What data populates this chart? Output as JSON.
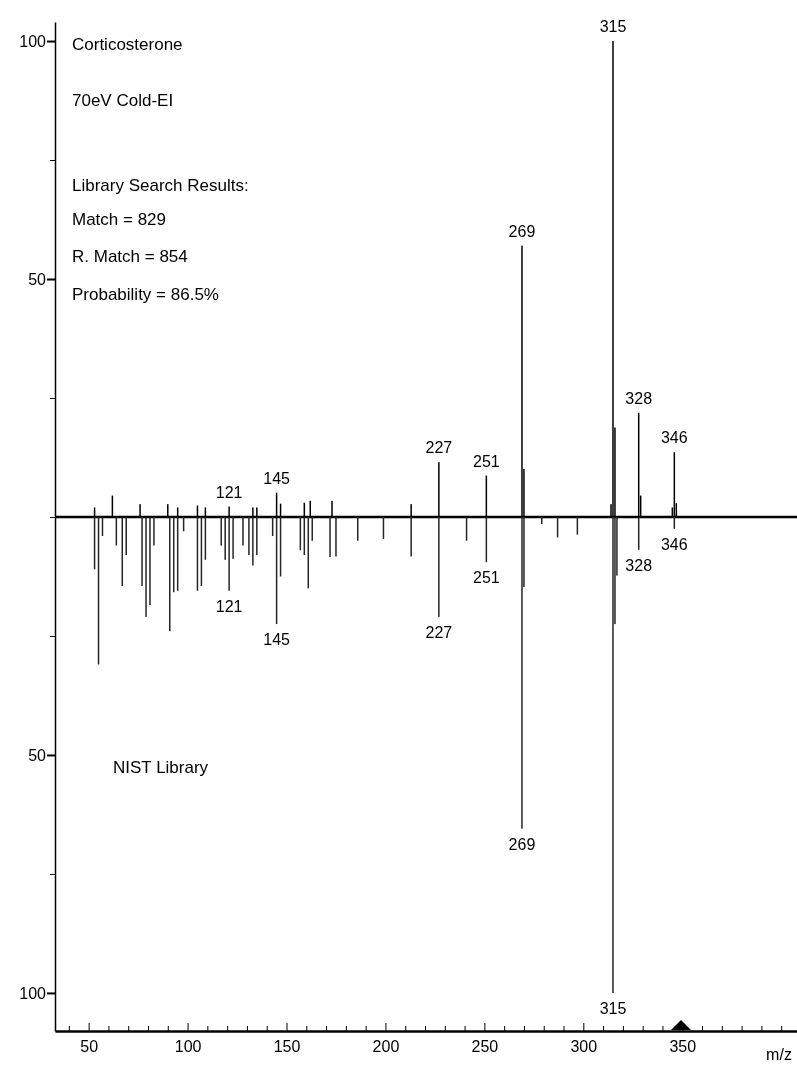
{
  "chart_data": {
    "type": "bar",
    "xlabel": "m/z",
    "xlim": [
      33,
      408
    ],
    "ylim": [
      -108,
      104
    ],
    "xticks": [
      {
        "value": 40,
        "label": null
      },
      50,
      {
        "value": 60,
        "label": null
      },
      {
        "value": 70,
        "label": null
      },
      {
        "value": 80,
        "label": null
      },
      {
        "value": 90,
        "label": null
      },
      100,
      {
        "value": 110,
        "label": null
      },
      {
        "value": 120,
        "label": null
      },
      {
        "value": 130,
        "label": null
      },
      {
        "value": 140,
        "label": null
      },
      150,
      {
        "value": 160,
        "label": null
      },
      {
        "value": 170,
        "label": null
      },
      {
        "value": 180,
        "label": null
      },
      {
        "value": 190,
        "label": null
      },
      200,
      {
        "value": 210,
        "label": null
      },
      {
        "value": 220,
        "label": null
      },
      {
        "value": 230,
        "label": null
      },
      {
        "value": 240,
        "label": null
      },
      250,
      {
        "value": 260,
        "label": null
      },
      {
        "value": 270,
        "label": null
      },
      {
        "value": 280,
        "label": null
      },
      {
        "value": 290,
        "label": null
      },
      300,
      {
        "value": 310,
        "label": null
      },
      {
        "value": 320,
        "label": null
      },
      {
        "value": 330,
        "label": null
      },
      {
        "value": 340,
        "label": null
      },
      350,
      {
        "value": 360,
        "label": null
      },
      {
        "value": 370,
        "label": null
      },
      {
        "value": 380,
        "label": null
      },
      {
        "value": 390,
        "label": null
      },
      {
        "value": 400,
        "label": null
      }
    ],
    "yticks": [
      100,
      {
        "value": 75,
        "label": null
      },
      50,
      {
        "value": 25,
        "label": null
      },
      {
        "value": 0,
        "label": null
      },
      {
        "value": -25,
        "label": null
      },
      {
        "value": -50,
        "label": "50"
      },
      {
        "value": -75,
        "label": null
      },
      {
        "value": -100,
        "label": "100"
      }
    ],
    "ref_lines": [
      {
        "axis": "y",
        "value": 0,
        "color": "#000000"
      }
    ],
    "series": [
      {
        "color": "#000000",
        "x": [
          53,
          62,
          76,
          90,
          95,
          105,
          109,
          121,
          133,
          135,
          145,
          147,
          159,
          162,
          173,
          213,
          227,
          251,
          269,
          270,
          314,
          315,
          316,
          328,
          329,
          345,
          346,
          347
        ],
        "values": [
          2,
          4.5,
          2.7,
          2.7,
          2,
          2.4,
          2,
          2.2,
          2,
          2,
          5.1,
          2.8,
          3,
          3.4,
          3.4,
          2.7,
          11.5,
          8.7,
          57,
          10.1,
          2.7,
          100,
          18.8,
          21.9,
          4.5,
          2,
          13.6,
          2.9
        ]
      },
      {
        "color": "#262626",
        "x": [
          53,
          55,
          57,
          64,
          67,
          69,
          77,
          79,
          81,
          83,
          91,
          93,
          95,
          98,
          105,
          107,
          109,
          117,
          119,
          121,
          123,
          128,
          131,
          133,
          135,
          143,
          145,
          147,
          157,
          159,
          161,
          163,
          172,
          175,
          186,
          199,
          213,
          227,
          241,
          251,
          269,
          270,
          279,
          287,
          297,
          315,
          316,
          317,
          328,
          346
        ],
        "values": [
          -11,
          -31,
          -4,
          -6,
          -14.5,
          -8,
          -14.5,
          -21,
          -18.5,
          -6,
          -24,
          -15.8,
          -15.5,
          -3,
          -15.5,
          -14.5,
          -9,
          -6,
          -9,
          -15.5,
          -8.8,
          -6,
          -8,
          -10.2,
          -8,
          -4,
          -22.5,
          -12.5,
          -7,
          -8,
          -15,
          -5,
          -8.4,
          -8.3,
          -5,
          -4.6,
          -8.3,
          -21,
          -5,
          -9.5,
          -65.5,
          -14.7,
          -1.5,
          -4.3,
          -3.7,
          -100,
          -22.5,
          -12.3,
          -6.9,
          -2.5
        ]
      }
    ],
    "annotations": [
      "Corticosterone",
      "70eV Cold-EI",
      "Library Search Results:",
      "Match = 829",
      "R. Match = 854",
      "Probability = 86.5%",
      "NIST Library",
      {
        "text": "315",
        "x": 315,
        "y": 100
      },
      {
        "text": "269",
        "x": 269,
        "y": 57
      },
      {
        "text": "328",
        "x": 328,
        "y": 21.9
      },
      {
        "text": "346",
        "x": 346,
        "y": 13.6
      },
      {
        "text": "227",
        "x": 227,
        "y": 11.5
      },
      {
        "text": "251",
        "x": 251,
        "y": 8.7
      },
      {
        "text": "145",
        "x": 145,
        "y": 5.1
      },
      {
        "text": "121",
        "x": 121,
        "y": 2.2
      },
      {
        "text": "315",
        "x": 315,
        "y": -100
      },
      {
        "text": "269",
        "x": 269,
        "y": -65.5
      },
      {
        "text": "227",
        "x": 227,
        "y": -21
      },
      {
        "text": "145",
        "x": 145,
        "y": -22.5
      },
      {
        "text": "121",
        "x": 121,
        "y": -15.5
      },
      {
        "text": "251",
        "x": 251,
        "y": -9.5
      },
      {
        "text": "328",
        "x": 328,
        "y": -6.9
      },
      {
        "text": "346",
        "x": 346,
        "y": -2.5
      }
    ]
  }
}
